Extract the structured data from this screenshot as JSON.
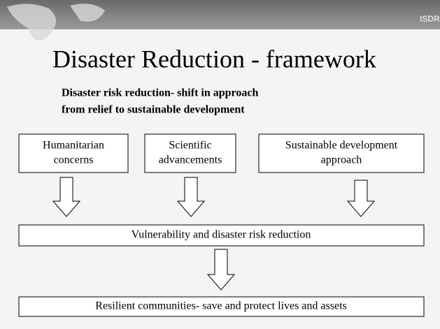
{
  "title": "Disaster Reduction - framework",
  "subtitle": [
    "Disaster risk reduction- shift in approach",
    "from relief to sustainable development"
  ],
  "logo": "ISDR",
  "nodes": [
    {
      "label": [
        "Humanitarian",
        "concerns"
      ]
    },
    {
      "label": [
        "Scientific",
        "advancements"
      ]
    },
    {
      "label": [
        "Sustainable development",
        "approach"
      ]
    },
    {
      "label": [
        "Vulnerability and disaster risk reduction"
      ]
    },
    {
      "label": [
        "Resilient communities- save and protect lives and assets"
      ]
    }
  ]
}
